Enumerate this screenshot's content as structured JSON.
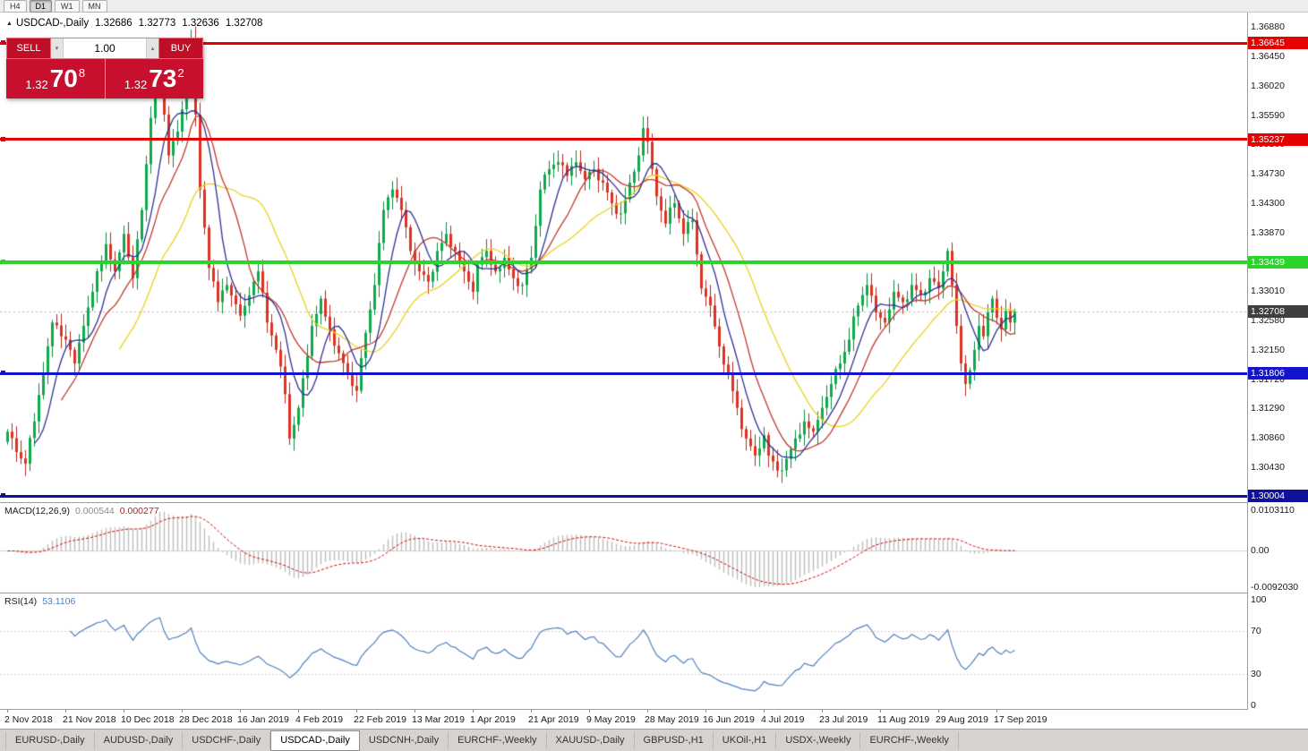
{
  "toolbar": {
    "timeframes": [
      {
        "label": "H4",
        "active": false
      },
      {
        "label": "D1",
        "active": true
      },
      {
        "label": "W1",
        "active": false
      },
      {
        "label": "MN",
        "active": false
      }
    ]
  },
  "chart": {
    "symbol_label": "USDCAD-,Daily",
    "ohlc": {
      "open": "1.32686",
      "high": "1.32773",
      "low": "1.32636",
      "close": "1.32708"
    }
  },
  "trade": {
    "sell_label": "SELL",
    "buy_label": "BUY",
    "volume": "1.00",
    "sell_price": {
      "base": "1.32",
      "big": "70",
      "sup": "8"
    },
    "buy_price": {
      "base": "1.32",
      "big": "73",
      "sup": "2"
    }
  },
  "icons": {
    "collapse": "▲",
    "volume_down": "▾",
    "volume_up": "▴"
  },
  "colors": {
    "candle_up": "#0fa94c",
    "candle_up_border": "#0a8a3e",
    "candle_down": "#dd3222",
    "candle_down_border": "#b3291c",
    "macd_hist": "#bdbdbd",
    "macd_signal": "#cc0000",
    "rsi_line": "#4f81bd",
    "current_price_badge": "#3f3f3f",
    "panel_red": "#c8102e"
  },
  "chart_data": {
    "type": "candlestick",
    "symbol": "USDCAD",
    "timeframe": "Daily",
    "current_price": 1.32708,
    "current_price_label": "1.32708",
    "y_axis": {
      "min": 1.2993,
      "max": 1.37095,
      "ticks": [
        "1.36880",
        "1.36450",
        "1.36020",
        "1.35590",
        "1.35160",
        "1.34730",
        "1.34300",
        "1.33870",
        "1.33440",
        "1.33010",
        "1.32580",
        "1.32150",
        "1.31720",
        "1.31290",
        "1.30860",
        "1.30430",
        "1.30000"
      ]
    },
    "x_axis": {
      "labels": [
        "2 Nov 2018",
        "21 Nov 2018",
        "10 Dec 2018",
        "28 Dec 2018",
        "16 Jan 2019",
        "4 Feb 2019",
        "22 Feb 2019",
        "13 Mar 2019",
        "1 Apr 2019",
        "21 Apr 2019",
        "9 May 2019",
        "28 May 2019",
        "16 Jun 2019",
        "4 Jul 2019",
        "23 Jul 2019",
        "11 Aug 2019",
        "29 Aug 2019",
        "17 Sep 2019"
      ],
      "label_indices": [
        0,
        13,
        26,
        39,
        52,
        65,
        78,
        91,
        104,
        117,
        130,
        143,
        156,
        169,
        182,
        195,
        208,
        221
      ]
    },
    "levels": [
      {
        "price": "1.36645",
        "value": 1.36645,
        "color": "#e60000",
        "thickness": 3
      },
      {
        "price": "1.35237",
        "value": 1.35237,
        "color": "#e60000",
        "thickness": 3
      },
      {
        "price": "1.33439",
        "value": 1.33439,
        "color": "#2bd42b",
        "thickness": 4
      },
      {
        "price": "1.31806",
        "value": 1.31806,
        "color": "#1414cc",
        "thickness": 3
      },
      {
        "price": "1.30004",
        "value": 1.30004,
        "color": "#10109a",
        "thickness": 3
      }
    ],
    "candles": {
      "count": 226,
      "anchor_closes": [
        [
          0,
          1.3095
        ],
        [
          2,
          1.3065
        ],
        [
          4,
          1.3048
        ],
        [
          6,
          1.311
        ],
        [
          8,
          1.318
        ],
        [
          10,
          1.3255
        ],
        [
          13,
          1.323
        ],
        [
          15,
          1.3195
        ],
        [
          17,
          1.325
        ],
        [
          19,
          1.33
        ],
        [
          22,
          1.337
        ],
        [
          24,
          1.333
        ],
        [
          26,
          1.3385
        ],
        [
          28,
          1.332
        ],
        [
          30,
          1.342
        ],
        [
          32,
          1.3555
        ],
        [
          34,
          1.3645
        ],
        [
          35,
          1.356
        ],
        [
          36,
          1.35
        ],
        [
          38,
          1.3535
        ],
        [
          40,
          1.36
        ],
        [
          41,
          1.3672
        ],
        [
          42,
          1.356
        ],
        [
          43,
          1.345
        ],
        [
          45,
          1.3335
        ],
        [
          47,
          1.3285
        ],
        [
          49,
          1.331
        ],
        [
          52,
          1.3265
        ],
        [
          54,
          1.3295
        ],
        [
          56,
          1.333
        ],
        [
          58,
          1.3255
        ],
        [
          60,
          1.3215
        ],
        [
          62,
          1.315
        ],
        [
          63,
          1.3085
        ],
        [
          65,
          1.313
        ],
        [
          68,
          1.325
        ],
        [
          70,
          1.329
        ],
        [
          72,
          1.3245
        ],
        [
          74,
          1.321
        ],
        [
          76,
          1.318
        ],
        [
          78,
          1.3155
        ],
        [
          80,
          1.324
        ],
        [
          82,
          1.331
        ],
        [
          84,
          1.342
        ],
        [
          86,
          1.345
        ],
        [
          88,
          1.342
        ],
        [
          90,
          1.336
        ],
        [
          92,
          1.333
        ],
        [
          94,
          1.3315
        ],
        [
          96,
          1.336
        ],
        [
          98,
          1.3385
        ],
        [
          100,
          1.336
        ],
        [
          102,
          1.333
        ],
        [
          104,
          1.33
        ],
        [
          105,
          1.334
        ],
        [
          107,
          1.336
        ],
        [
          109,
          1.333
        ],
        [
          111,
          1.335
        ],
        [
          113,
          1.332
        ],
        [
          115,
          1.331
        ],
        [
          117,
          1.335
        ],
        [
          119,
          1.345
        ],
        [
          121,
          1.348
        ],
        [
          123,
          1.349
        ],
        [
          125,
          1.347
        ],
        [
          127,
          1.349
        ],
        [
          129,
          1.3465
        ],
        [
          131,
          1.348
        ],
        [
          133,
          1.346
        ],
        [
          135,
          1.343
        ],
        [
          137,
          1.3415
        ],
        [
          139,
          1.346
        ],
        [
          141,
          1.35
        ],
        [
          142,
          1.354
        ],
        [
          143,
          1.352
        ],
        [
          144,
          1.348
        ],
        [
          145,
          1.344
        ],
        [
          147,
          1.34
        ],
        [
          149,
          1.343
        ],
        [
          151,
          1.3385
        ],
        [
          153,
          1.3405
        ],
        [
          155,
          1.3305
        ],
        [
          157,
          1.328
        ],
        [
          159,
          1.322
        ],
        [
          161,
          1.318
        ],
        [
          163,
          1.313
        ],
        [
          165,
          1.3085
        ],
        [
          167,
          1.306
        ],
        [
          169,
          1.309
        ],
        [
          170,
          1.306
        ],
        [
          172,
          1.3038
        ],
        [
          174,
          1.3055
        ],
        [
          176,
          1.3085
        ],
        [
          178,
          1.311
        ],
        [
          180,
          1.3095
        ],
        [
          182,
          1.313
        ],
        [
          184,
          1.3165
        ],
        [
          186,
          1.3195
        ],
        [
          188,
          1.323
        ],
        [
          190,
          1.328
        ],
        [
          192,
          1.331
        ],
        [
          194,
          1.327
        ],
        [
          196,
          1.3255
        ],
        [
          198,
          1.33
        ],
        [
          200,
          1.3285
        ],
        [
          202,
          1.331
        ],
        [
          204,
          1.3295
        ],
        [
          206,
          1.332
        ],
        [
          208,
          1.3305
        ],
        [
          209,
          1.333
        ],
        [
          210,
          1.336
        ],
        [
          211,
          1.331
        ],
        [
          212,
          1.325
        ],
        [
          213,
          1.3195
        ],
        [
          214,
          1.3165
        ],
        [
          215,
          1.3185
        ],
        [
          216,
          1.3215
        ],
        [
          217,
          1.325
        ],
        [
          218,
          1.3235
        ],
        [
          219,
          1.327
        ],
        [
          220,
          1.329
        ],
        [
          221,
          1.3262
        ],
        [
          222,
          1.3245
        ],
        [
          223,
          1.3272
        ],
        [
          224,
          1.3255
        ],
        [
          225,
          1.32708
        ]
      ]
    },
    "moving_averages": [
      {
        "period": 26,
        "color": "#e8d21c"
      },
      {
        "period": 13,
        "color": "#c0392b"
      },
      {
        "period": 7,
        "color": "#2e3192"
      }
    ],
    "indicators": {
      "macd": {
        "name": "MACD(12,26,9)",
        "fast": 12,
        "slow": 26,
        "signal": 9,
        "value_main": "0.000544",
        "value_signal": "0.000277",
        "scale": [
          "0.0103110",
          "0.00",
          "-0.0092030"
        ],
        "vmax": 0.010311,
        "vmin": -0.009203
      },
      "rsi": {
        "name": "RSI(14)",
        "period": 14,
        "value": "53.1106",
        "scale": [
          "100",
          "70",
          "30",
          "0"
        ],
        "levels": [
          70,
          30
        ]
      }
    }
  },
  "tabs": [
    {
      "label": "EURUSD-,Daily",
      "active": false
    },
    {
      "label": "AUDUSD-,Daily",
      "active": false
    },
    {
      "label": "USDCHF-,Daily",
      "active": false
    },
    {
      "label": "USDCAD-,Daily",
      "active": true
    },
    {
      "label": "USDCNH-,Daily",
      "active": false
    },
    {
      "label": "EURCHF-,Weekly",
      "active": false
    },
    {
      "label": "XAUUSD-,Daily",
      "active": false
    },
    {
      "label": "GBPUSD-,H1",
      "active": false
    },
    {
      "label": "UKOil-,H1",
      "active": false
    },
    {
      "label": "USDX-,Weekly",
      "active": false
    },
    {
      "label": "EURCHF-,Weekly",
      "active": false
    }
  ]
}
